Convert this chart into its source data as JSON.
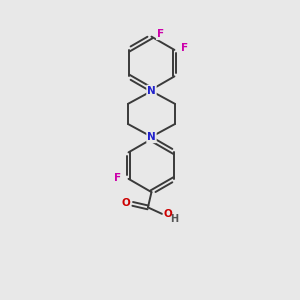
{
  "bg_color": "#e8e8e8",
  "bond_color": "#3a3a3a",
  "bond_width": 1.4,
  "N_color": "#2020cc",
  "F_color": "#cc00aa",
  "O_color": "#cc0000",
  "H_color": "#555555",
  "font_size": 7.5,
  "figsize": [
    3.0,
    3.0
  ],
  "dpi": 100,
  "xlim": [
    0,
    10
  ],
  "ylim": [
    0,
    10
  ]
}
